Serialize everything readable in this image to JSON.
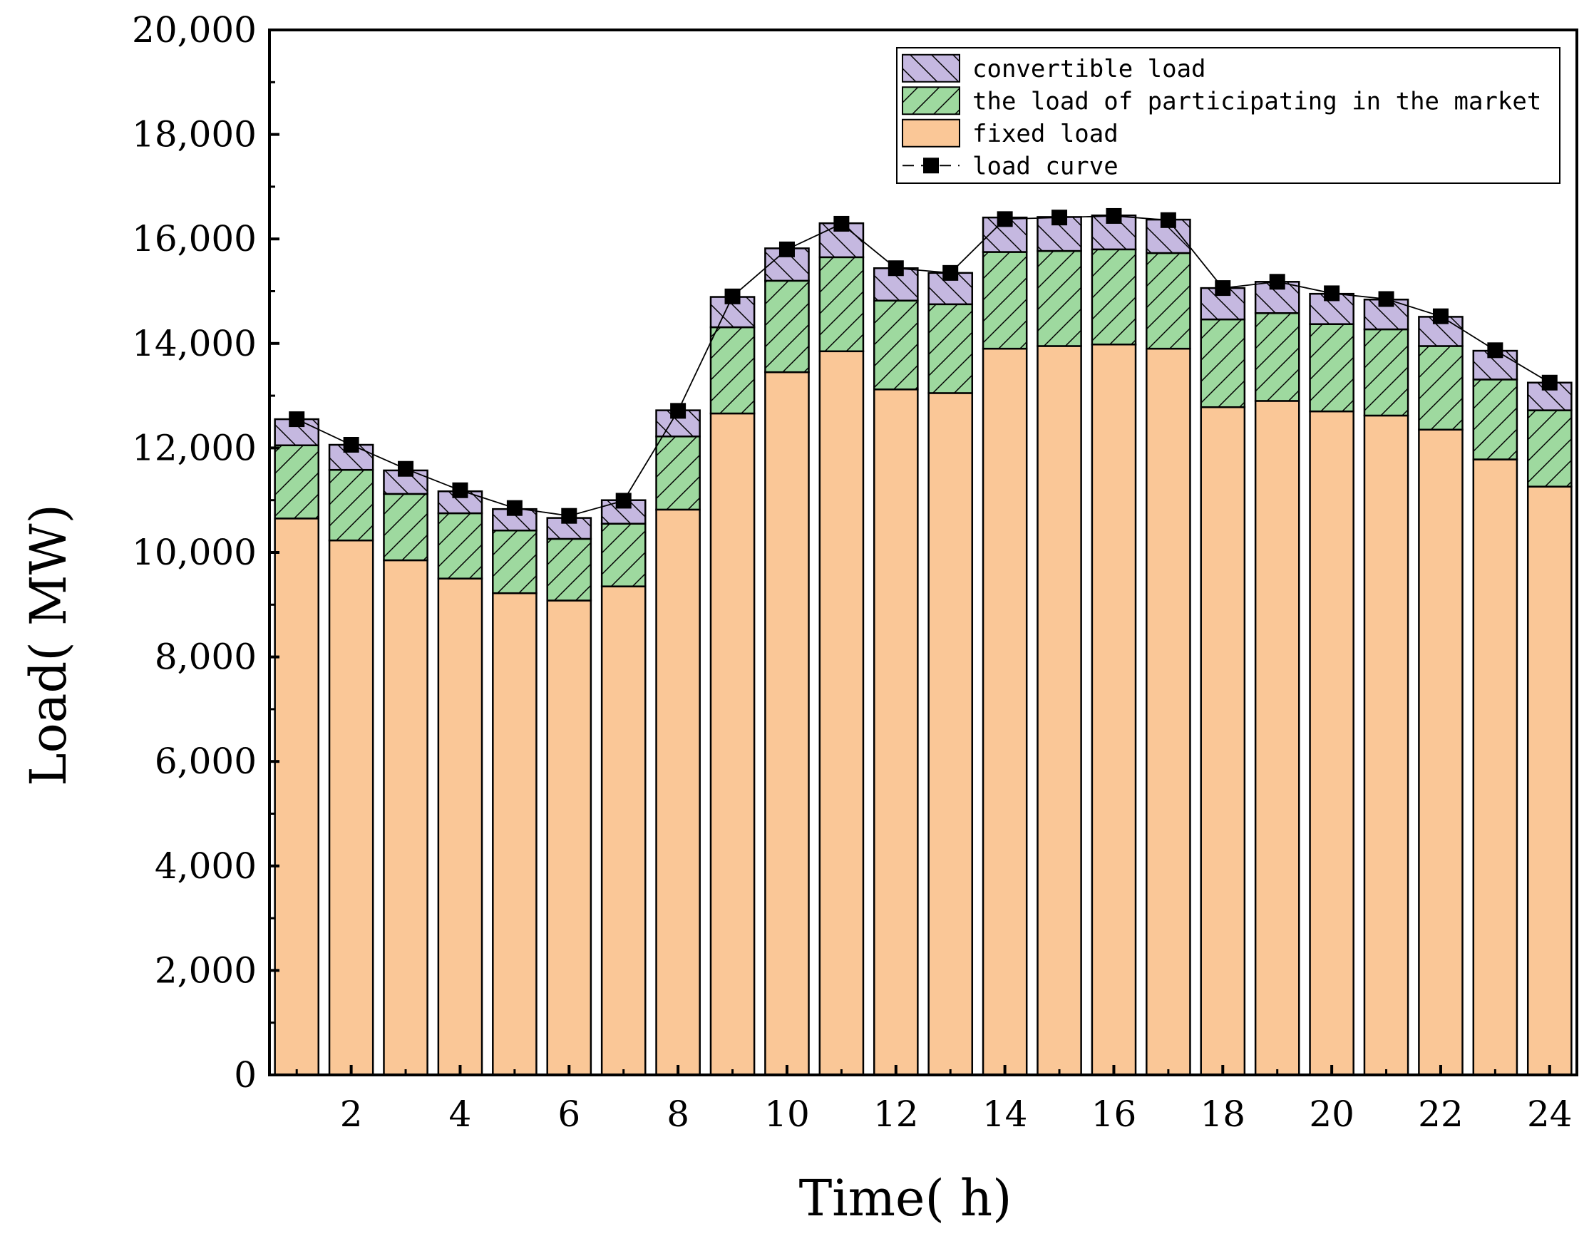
{
  "chart_data": {
    "type": "bar",
    "stacked": true,
    "xlabel": "Time( h)",
    "ylabel": "Load( MW)",
    "ylim": [
      0,
      20000
    ],
    "yticks": [
      "0",
      "2,000",
      "4,000",
      "6,000",
      "8,000",
      "10,000",
      "12,000",
      "14,000",
      "16,000",
      "18,000",
      "20,000"
    ],
    "xticks": [
      "2",
      "4",
      "6",
      "8",
      "10",
      "12",
      "14",
      "16",
      "18",
      "20",
      "22",
      "24"
    ],
    "categories": [
      1,
      2,
      3,
      4,
      5,
      6,
      7,
      8,
      9,
      10,
      11,
      12,
      13,
      14,
      15,
      16,
      17,
      18,
      19,
      20,
      21,
      22,
      23,
      24
    ],
    "series": [
      {
        "name": "fixed load",
        "color": "#fac797",
        "pattern": "none",
        "values": [
          10650,
          10230,
          9850,
          9500,
          9220,
          9080,
          9350,
          10820,
          12660,
          13450,
          13850,
          13120,
          13050,
          13900,
          13950,
          13980,
          13900,
          12780,
          12900,
          12700,
          12620,
          12350,
          11780,
          11260
        ]
      },
      {
        "name": "the load of participating in the market",
        "color": "#9ed99f",
        "pattern": "hatch-forward",
        "values": [
          1400,
          1350,
          1270,
          1250,
          1200,
          1180,
          1200,
          1400,
          1650,
          1750,
          1800,
          1700,
          1700,
          1850,
          1820,
          1820,
          1830,
          1680,
          1680,
          1670,
          1650,
          1600,
          1530,
          1460
        ]
      },
      {
        "name": "convertible load",
        "color": "#c5b8e0",
        "pattern": "hatch-back",
        "values": [
          500,
          480,
          450,
          420,
          410,
          400,
          450,
          500,
          580,
          620,
          650,
          620,
          600,
          660,
          650,
          650,
          640,
          600,
          600,
          580,
          570,
          560,
          550,
          530
        ]
      }
    ],
    "load_curve": {
      "name": "load curve",
      "color": "#000000",
      "values": [
        12550,
        12060,
        11600,
        11190,
        10850,
        10700,
        10990,
        12710,
        14900,
        15800,
        16290,
        15440,
        15350,
        16380,
        16410,
        16440,
        16360,
        15060,
        15180,
        14960,
        14850,
        14520,
        13870,
        13250
      ]
    },
    "legend": {
      "position": "top-right",
      "entries": [
        "convertible load",
        "the load of participating in the market",
        "fixed load",
        "load curve"
      ]
    }
  }
}
